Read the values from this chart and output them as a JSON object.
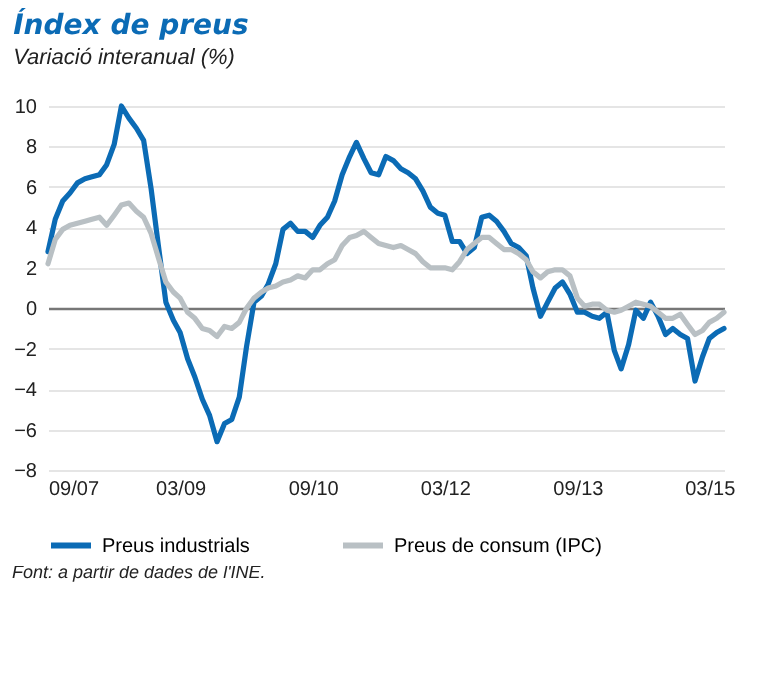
{
  "chart_data": {
    "type": "line",
    "title": "Índex de preus",
    "subtitle": "Variació interanual (%)",
    "annotations": [
      "Font: a partir de dades de l'INE."
    ],
    "x": [
      "2007-09",
      "2007-10",
      "2007-11",
      "2007-12",
      "2008-01",
      "2008-02",
      "2008-03",
      "2008-04",
      "2008-05",
      "2008-06",
      "2008-07",
      "2008-08",
      "2008-09",
      "2008-10",
      "2008-11",
      "2008-12",
      "2009-01",
      "2009-02",
      "2009-03",
      "2009-04",
      "2009-05",
      "2009-06",
      "2009-07",
      "2009-08",
      "2009-09",
      "2009-10",
      "2009-11",
      "2009-12",
      "2010-01",
      "2010-02",
      "2010-03",
      "2010-04",
      "2010-05",
      "2010-06",
      "2010-07",
      "2010-08",
      "2010-09",
      "2010-10",
      "2010-11",
      "2010-12",
      "2011-01",
      "2011-02",
      "2011-03",
      "2011-04",
      "2011-05",
      "2011-06",
      "2011-07",
      "2011-08",
      "2011-09",
      "2011-10",
      "2011-11",
      "2011-12",
      "2012-01",
      "2012-02",
      "2012-03",
      "2012-04",
      "2012-05",
      "2012-06",
      "2012-07",
      "2012-08",
      "2012-09",
      "2012-10",
      "2012-11",
      "2012-12",
      "2013-01",
      "2013-02",
      "2013-03",
      "2013-04",
      "2013-05",
      "2013-06",
      "2013-07",
      "2013-08",
      "2013-09",
      "2013-10",
      "2013-11",
      "2013-12",
      "2014-01",
      "2014-02",
      "2014-03",
      "2014-04",
      "2014-05",
      "2014-06",
      "2014-07",
      "2014-08",
      "2014-09",
      "2014-10",
      "2014-11",
      "2014-12",
      "2015-01",
      "2015-02",
      "2015-03",
      "2015-04",
      "2015-05"
    ],
    "series": [
      {
        "name": "Preus industrials",
        "color": "#0b6bb5",
        "values": [
          2.8,
          4.4,
          5.3,
          5.7,
          6.2,
          6.4,
          6.5,
          6.6,
          7.1,
          8.1,
          10.0,
          9.4,
          8.9,
          8.3,
          5.9,
          3.1,
          0.3,
          -0.6,
          -1.2,
          -2.5,
          -3.4,
          -4.5,
          -5.3,
          -6.6,
          -5.7,
          -5.5,
          -4.4,
          -1.9,
          0.3,
          0.6,
          1.2,
          2.2,
          3.9,
          4.2,
          3.8,
          3.8,
          3.5,
          4.1,
          4.5,
          5.3,
          6.6,
          7.5,
          8.2,
          7.4,
          6.7,
          6.6,
          7.5,
          7.3,
          6.9,
          6.7,
          6.4,
          5.8,
          5.0,
          4.7,
          4.6,
          3.3,
          3.3,
          2.7,
          3.0,
          4.5,
          4.6,
          4.3,
          3.8,
          3.2,
          3.0,
          2.6,
          1.0,
          -0.4,
          0.3,
          1.0,
          1.3,
          0.7,
          -0.2,
          -0.2,
          -0.4,
          -0.5,
          -0.2,
          -2.1,
          -3.0,
          -1.8,
          -0.1,
          -0.5,
          0.3,
          -0.4,
          -1.3,
          -1.0,
          -1.3,
          -1.5,
          -3.6,
          -2.4,
          -1.5,
          -1.2,
          -1.0
        ]
      },
      {
        "name": "Preus de consum (IPC)",
        "color": "#b9c0c4",
        "values": [
          2.2,
          3.4,
          3.9,
          4.1,
          4.2,
          4.3,
          4.4,
          4.5,
          4.1,
          4.6,
          5.1,
          5.2,
          4.8,
          4.5,
          3.7,
          2.5,
          1.3,
          0.8,
          0.5,
          -0.2,
          -0.5,
          -1.0,
          -1.1,
          -1.4,
          -0.9,
          -1.0,
          -0.7,
          0.0,
          0.5,
          0.8,
          1.0,
          1.1,
          1.3,
          1.4,
          1.6,
          1.5,
          1.9,
          1.9,
          2.2,
          2.4,
          3.1,
          3.5,
          3.6,
          3.8,
          3.5,
          3.2,
          3.1,
          3.0,
          3.1,
          2.9,
          2.7,
          2.3,
          2.0,
          2.0,
          2.0,
          1.9,
          2.3,
          2.9,
          3.2,
          3.5,
          3.5,
          3.2,
          2.9,
          2.9,
          2.7,
          2.4,
          1.8,
          1.5,
          1.8,
          1.9,
          1.9,
          1.6,
          0.5,
          0.1,
          0.2,
          0.2,
          -0.1,
          -0.2,
          -0.1,
          0.1,
          0.3,
          0.2,
          0.1,
          -0.2,
          -0.5,
          -0.5,
          -0.3,
          -0.8,
          -1.3,
          -1.1,
          -0.7,
          -0.5,
          -0.2
        ]
      }
    ],
    "xlim": [
      "2007-09",
      "2015-05"
    ],
    "xticks": [
      {
        "value": "2007-09",
        "label": "09/07"
      },
      {
        "value": "2009-03",
        "label": "03/09"
      },
      {
        "value": "2010-09",
        "label": "09/10"
      },
      {
        "value": "2012-03",
        "label": "03/12"
      },
      {
        "value": "2013-09",
        "label": "09/13"
      },
      {
        "value": "2015-03",
        "label": "03/15"
      }
    ],
    "ylim": [
      -8,
      10
    ],
    "yticks": [
      -8,
      -6,
      -4,
      -2,
      0,
      2,
      4,
      6,
      8,
      10
    ],
    "grid": "y",
    "legend": "bottom"
  }
}
